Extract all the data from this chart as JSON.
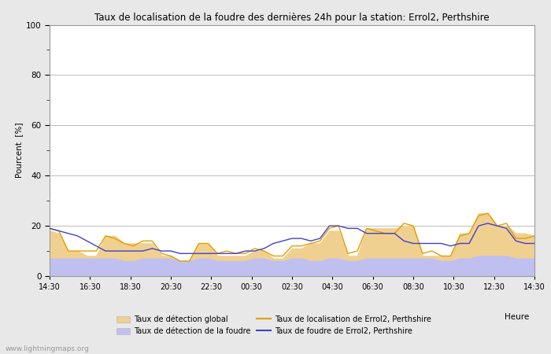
{
  "title": "Taux de localisation de la foudre des dernières 24h pour la station: Errol2, Perthshire",
  "ylabel": "Pourcent  [%]",
  "xtick_labels": [
    "14:30",
    "16:30",
    "18:30",
    "20:30",
    "22:30",
    "00:30",
    "02:30",
    "04:30",
    "06:30",
    "08:30",
    "10:30",
    "12:30",
    "14:30"
  ],
  "ylim": [
    0,
    100
  ],
  "yticks": [
    0,
    20,
    40,
    60,
    80,
    100
  ],
  "yticks_minor": [
    10,
    30,
    50,
    70,
    90
  ],
  "background_color": "#e8e8e8",
  "plot_bg_color": "#ffffff",
  "grid_color": "#bbbbbb",
  "watermark": "www.lightningmaps.org",
  "fill_global_color": "#f0d090",
  "fill_lightning_color": "#c0c0f0",
  "line_localization_color": "#e0a000",
  "line_lightning_color": "#4040cc",
  "global_detection": [
    18,
    17,
    10,
    10,
    8,
    8,
    16,
    16,
    13,
    13,
    13,
    13,
    8,
    8,
    6,
    6,
    13,
    13,
    8,
    8,
    8,
    8,
    10,
    10,
    7,
    7,
    11,
    11,
    13,
    13,
    18,
    18,
    8,
    8,
    19,
    19,
    19,
    19,
    20,
    20,
    8,
    8,
    8,
    8,
    17,
    17,
    25,
    25,
    20,
    20,
    17,
    17,
    16
  ],
  "lightning_detection": [
    7,
    7,
    7,
    7,
    7,
    7,
    7,
    7,
    6,
    6,
    7,
    7,
    7,
    7,
    6,
    6,
    7,
    7,
    6,
    6,
    6,
    6,
    7,
    7,
    6,
    6,
    7,
    7,
    6,
    6,
    7,
    7,
    6,
    6,
    7,
    7,
    7,
    7,
    7,
    7,
    7,
    7,
    6,
    6,
    7,
    7,
    8,
    8,
    8,
    8,
    7,
    7,
    7
  ],
  "localization_rate": [
    19,
    18,
    10,
    10,
    10,
    10,
    16,
    15,
    13,
    12,
    14,
    14,
    9,
    8,
    6,
    6,
    13,
    13,
    9,
    10,
    9,
    9,
    11,
    10,
    8,
    8,
    12,
    12,
    13,
    14,
    19,
    20,
    9,
    10,
    19,
    18,
    17,
    17,
    21,
    20,
    9,
    10,
    8,
    8,
    16,
    17,
    24,
    25,
    20,
    21,
    15,
    15,
    16
  ],
  "lightning_rate": [
    19,
    18,
    17,
    16,
    14,
    12,
    10,
    10,
    10,
    10,
    10,
    11,
    10,
    10,
    9,
    9,
    9,
    9,
    9,
    9,
    9,
    10,
    10,
    11,
    13,
    14,
    15,
    15,
    14,
    15,
    20,
    20,
    19,
    19,
    17,
    17,
    17,
    17,
    14,
    13,
    13,
    13,
    13,
    12,
    13,
    13,
    20,
    21,
    20,
    19,
    14,
    13,
    13
  ]
}
